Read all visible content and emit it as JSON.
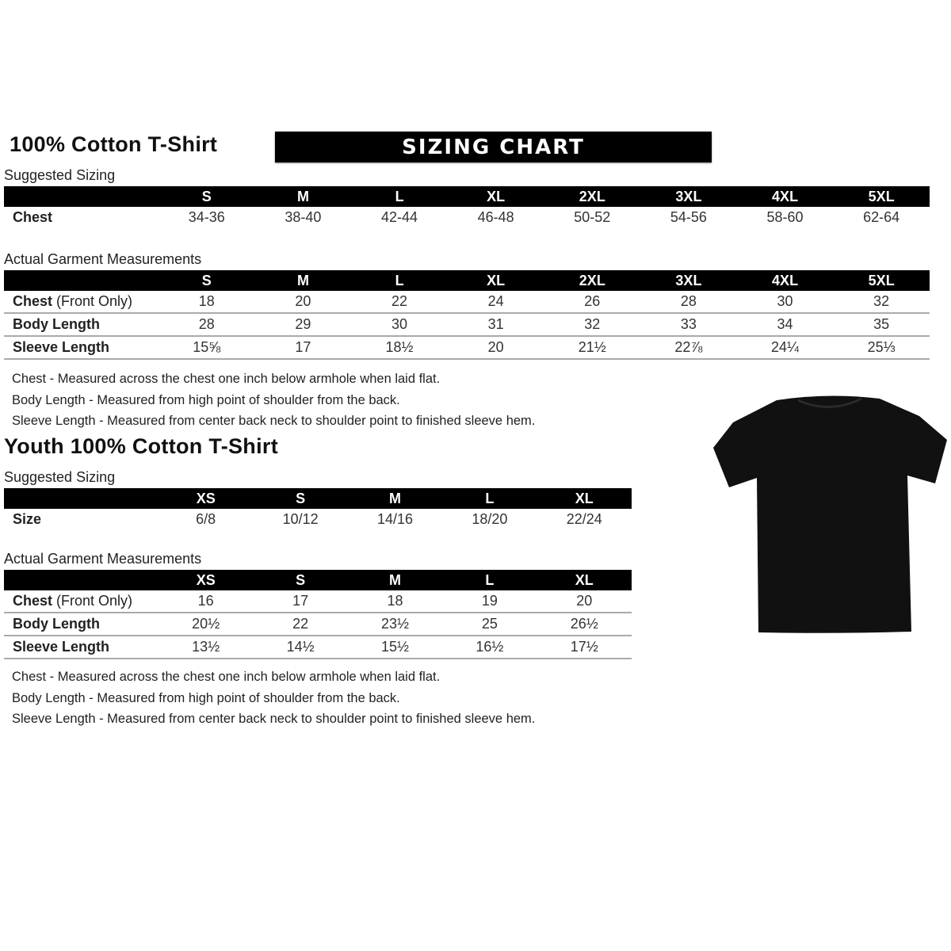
{
  "adult": {
    "title": "100% Cotton T-Shirt",
    "banner": "SIZING CHART",
    "suggested_label": "Suggested Sizing",
    "sizes": [
      "S",
      "M",
      "L",
      "XL",
      "2XL",
      "3XL",
      "4XL",
      "5XL"
    ],
    "suggested_rows": [
      {
        "label": "Chest",
        "values": [
          "34-36",
          "38-40",
          "42-44",
          "46-48",
          "50-52",
          "54-56",
          "58-60",
          "62-64"
        ]
      }
    ],
    "actual_label": "Actual Garment Measurements",
    "actual_rows": [
      {
        "label": "Chest",
        "label_note": " (Front Only)",
        "values": [
          "18",
          "20",
          "22",
          "24",
          "26",
          "28",
          "30",
          "32"
        ]
      },
      {
        "label": "Body Length",
        "values": [
          "28",
          "29",
          "30",
          "31",
          "32",
          "33",
          "34",
          "35"
        ]
      },
      {
        "label": "Sleeve Length",
        "values": [
          "15⅝",
          "17",
          "18½",
          "20",
          "21½",
          "22⅞",
          "24¼",
          "25⅓"
        ]
      }
    ],
    "notes": [
      "Chest - Measured across the chest one inch below armhole when laid flat.",
      "Body Length - Measured from high point of shoulder from the back.",
      "Sleeve Length - Measured from center back neck to shoulder point to finished sleeve hem."
    ]
  },
  "youth": {
    "title": "Youth 100% Cotton T-Shirt",
    "suggested_label": "Suggested Sizing",
    "sizes": [
      "XS",
      "S",
      "M",
      "L",
      "XL"
    ],
    "suggested_rows": [
      {
        "label": "Size",
        "values": [
          "6/8",
          "10/12",
          "14/16",
          "18/20",
          "22/24"
        ]
      }
    ],
    "actual_label": "Actual Garment Measurements",
    "actual_rows": [
      {
        "label": "Chest",
        "label_note": " (Front Only)",
        "values": [
          "16",
          "17",
          "18",
          "19",
          "20"
        ]
      },
      {
        "label": "Body Length",
        "values": [
          "20½",
          "22",
          "23½",
          "25",
          "26½"
        ]
      },
      {
        "label": "Sleeve Length",
        "values": [
          "13½",
          "14½",
          "15½",
          "16½",
          "17½"
        ]
      }
    ],
    "notes": [
      "Chest - Measured across the chest one inch below armhole when laid flat.",
      "Body Length - Measured from high point of shoulder from the back.",
      "Sleeve Length - Measured from center back neck to shoulder point to finished sleeve hem."
    ]
  },
  "image": {
    "icon": "t-shirt-icon",
    "color": "#111111"
  }
}
